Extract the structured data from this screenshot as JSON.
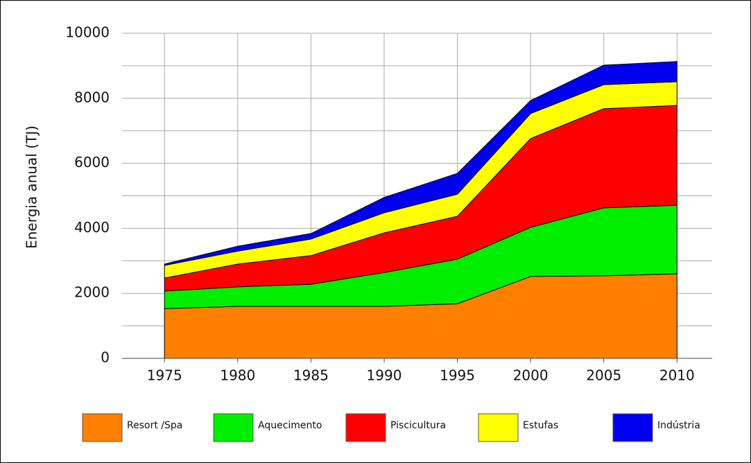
{
  "chart_data": {
    "type": "stacked_area",
    "y_label": "Energia anual  (TJ)",
    "x": [
      1975,
      1980,
      1985,
      1990,
      1995,
      2000,
      2005,
      2010
    ],
    "xlim": [
      1972.1,
      2012.4
    ],
    "xticks": [
      1975,
      1980,
      1985,
      1990,
      1995,
      2000,
      2005,
      2010
    ],
    "ylim": [
      0,
      10000
    ],
    "yticks": [
      0,
      2000,
      4000,
      6000,
      8000,
      10000
    ],
    "grid": true,
    "legend": "bottom",
    "series": [
      {
        "name": "Resort /Spa",
        "color": "#ff8000",
        "values": [
          1530,
          1600,
          1600,
          1600,
          1680,
          2520,
          2540,
          2600
        ]
      },
      {
        "name": "Aquecimento",
        "color": "#00ee00",
        "values": [
          540,
          600,
          680,
          1040,
          1370,
          1510,
          2090,
          2110
        ]
      },
      {
        "name": "Piscicultura",
        "color": "#ff0000",
        "values": [
          400,
          700,
          880,
          1220,
          1320,
          2730,
          3050,
          3070
        ]
      },
      {
        "name": "Estufas",
        "color": "#ffff00",
        "values": [
          390,
          400,
          510,
          620,
          680,
          770,
          740,
          730
        ]
      },
      {
        "name": "Indústria",
        "color": "#0000ee",
        "values": [
          40,
          150,
          170,
          470,
          640,
          400,
          600,
          620
        ]
      }
    ]
  }
}
